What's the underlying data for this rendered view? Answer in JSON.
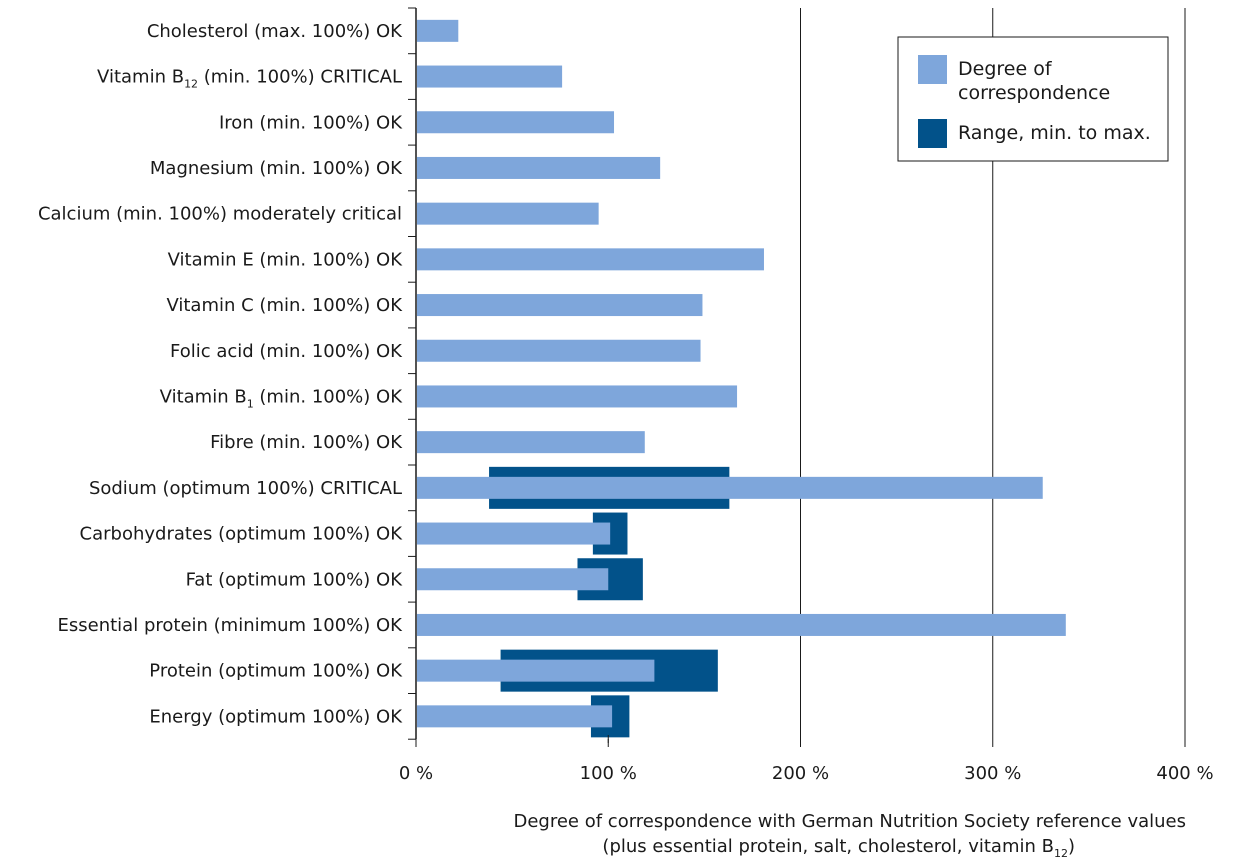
{
  "chart_data": {
    "type": "bar",
    "orientation": "horizontal",
    "categories": [
      {
        "pre": "Cholesterol (max. 100%) OK"
      },
      {
        "pre": "Vitamin B",
        "sub": "12",
        "post": " (min. 100%) CRITICAL"
      },
      {
        "pre": "Iron (min. 100%) OK"
      },
      {
        "pre": "Magnesium (min. 100%) OK"
      },
      {
        "pre": "Calcium (min. 100%) moderately critical"
      },
      {
        "pre": "Vitamin E (min. 100%) OK"
      },
      {
        "pre": "Vitamin C (min. 100%) OK"
      },
      {
        "pre": "Folic acid (min. 100%) OK"
      },
      {
        "pre": "Vitamin B",
        "sub": "1",
        "post": " (min. 100%) OK"
      },
      {
        "pre": "Fibre (min. 100%) OK"
      },
      {
        "pre": "Sodium (optimum 100%) CRITICAL"
      },
      {
        "pre": "Carbohydrates (optimum 100%) OK"
      },
      {
        "pre": "Fat (optimum 100%) OK"
      },
      {
        "pre": "Essential protein (minimum 100%) OK"
      },
      {
        "pre": "Protein (optimum 100%) OK"
      },
      {
        "pre": "Energy (optimum 100%) OK"
      }
    ],
    "series": [
      {
        "name": "Degree of correspondence",
        "color": "#7ea6db",
        "values": [
          22,
          76,
          103,
          127,
          95,
          181,
          149,
          148,
          167,
          119,
          326,
          101,
          100,
          338,
          124,
          102
        ]
      },
      {
        "name": "Range, min. to max.",
        "color": "#02528a",
        "ranges": [
          null,
          null,
          null,
          null,
          null,
          null,
          null,
          null,
          null,
          null,
          [
            38,
            163
          ],
          [
            92,
            110
          ],
          [
            84,
            118
          ],
          null,
          [
            44,
            157
          ],
          [
            91,
            111
          ]
        ]
      }
    ],
    "xlim": [
      0,
      400
    ],
    "xticks": [
      0,
      100,
      200,
      300,
      400
    ],
    "xtick_labels": [
      "0 %",
      "100 %",
      "200 %",
      "300 %",
      "400 %"
    ],
    "grid": "vertical lines at 200 %, 300 %, 400 %",
    "legend_position": "top-right",
    "legend": [
      {
        "lines": [
          "Degree of",
          "correspondence"
        ],
        "color": "#7ea6db"
      },
      {
        "lines": [
          "Range, min. to max."
        ],
        "color": "#02528a"
      }
    ],
    "xlabel_line1": "Degree of correspondence with German Nutrition Society reference values",
    "xlabel_line2": {
      "pre": "(plus essential protein, salt, cholesterol, vitamin B",
      "sub": "12",
      "post": ")"
    }
  }
}
